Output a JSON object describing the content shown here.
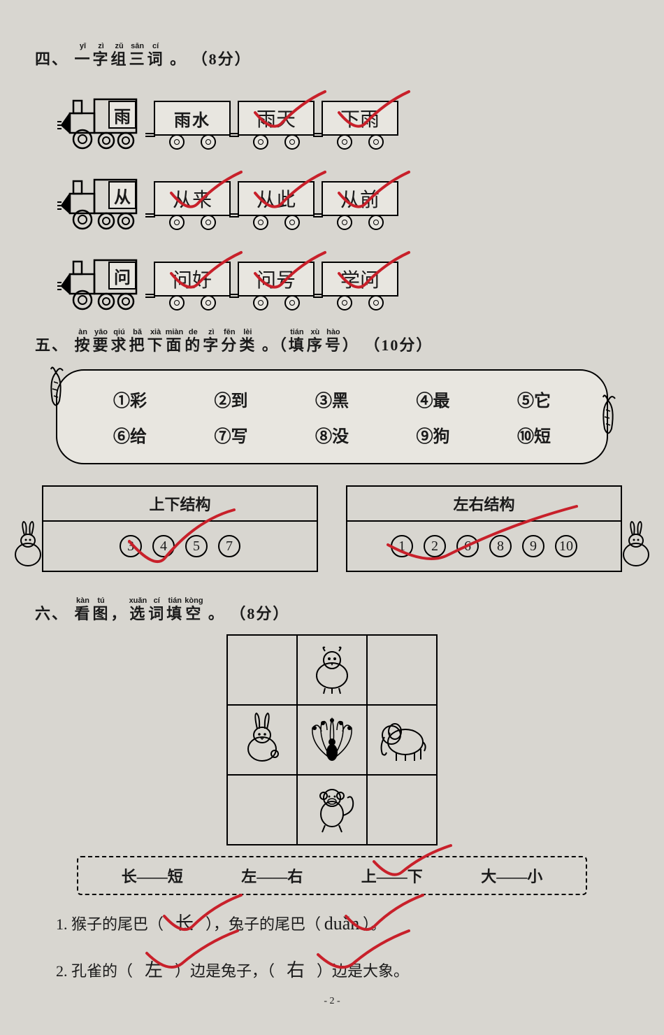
{
  "section4": {
    "number": "四、",
    "title_chars": [
      "一",
      "字",
      "组",
      "三",
      "词"
    ],
    "title_pinyin": [
      "yī",
      "zì",
      "zǔ",
      "sān",
      "cí"
    ],
    "points": "（8分）",
    "trains": [
      {
        "engine": "雨",
        "cars": [
          {
            "text": "雨水",
            "printed": true
          },
          {
            "text": "雨天",
            "printed": false
          },
          {
            "text": "下雨",
            "printed": false
          }
        ]
      },
      {
        "engine": "从",
        "cars": [
          {
            "text": "从来",
            "printed": false
          },
          {
            "text": "从此",
            "printed": false
          },
          {
            "text": "从前",
            "printed": false
          }
        ]
      },
      {
        "engine": "问",
        "cars": [
          {
            "text": "问好",
            "printed": false
          },
          {
            "text": "问号",
            "printed": false
          },
          {
            "text": "学问",
            "printed": false
          }
        ]
      }
    ]
  },
  "section5": {
    "number": "五、",
    "title_chars": [
      "按",
      "要",
      "求",
      "把",
      "下",
      "面",
      "的",
      "字",
      "分",
      "类"
    ],
    "title_pinyin": [
      "àn",
      "yāo",
      "qiú",
      "bǎ",
      "xià",
      "miàn",
      "de",
      "zì",
      "fēn",
      "lèi"
    ],
    "paren_chars": [
      "填",
      "序",
      "号"
    ],
    "paren_pinyin": [
      "tián",
      "xù",
      "hào"
    ],
    "points": "（10分）",
    "bank_row1": [
      {
        "n": "①",
        "c": "彩"
      },
      {
        "n": "②",
        "c": "到"
      },
      {
        "n": "③",
        "c": "黑"
      },
      {
        "n": "④",
        "c": "最"
      },
      {
        "n": "⑤",
        "c": "它"
      }
    ],
    "bank_row2": [
      {
        "n": "⑥",
        "c": "给"
      },
      {
        "n": "⑦",
        "c": "写"
      },
      {
        "n": "⑧",
        "c": "没"
      },
      {
        "n": "⑨",
        "c": "狗"
      },
      {
        "n": "⑩",
        "c": "短"
      }
    ],
    "box_left": {
      "title": "上下结构",
      "answers": [
        "3",
        "4",
        "5",
        "7"
      ]
    },
    "box_right": {
      "title": "左右结构",
      "answers": [
        "1",
        "2",
        "6",
        "8",
        "9",
        "10"
      ]
    }
  },
  "section6": {
    "number": "六、",
    "title_chars": [
      "看",
      "图",
      "，",
      "选",
      "词",
      "填",
      "空"
    ],
    "title_pinyin": [
      "kàn",
      "tú",
      "",
      "xuǎn",
      "cí",
      "tián",
      "kòng"
    ],
    "points": "（8分）",
    "options": [
      "长——短",
      "左——右",
      "上——下",
      "大——小"
    ],
    "q1": {
      "num": "1.",
      "pre": "猴子的尾巴（",
      "a1": "长",
      "mid": "），兔子的尾巴（",
      "a2": "duǎn",
      "post": "）。"
    },
    "q2": {
      "num": "2.",
      "pre": "孔雀的（",
      "a1": "左",
      "mid": "）边是兔子，（",
      "a2": "右",
      "post": "）边是大象。"
    }
  },
  "page_num": "- 2 -",
  "colors": {
    "red": "#c8202a",
    "ink": "#1a1a1a",
    "paper": "#d8d6d0"
  }
}
